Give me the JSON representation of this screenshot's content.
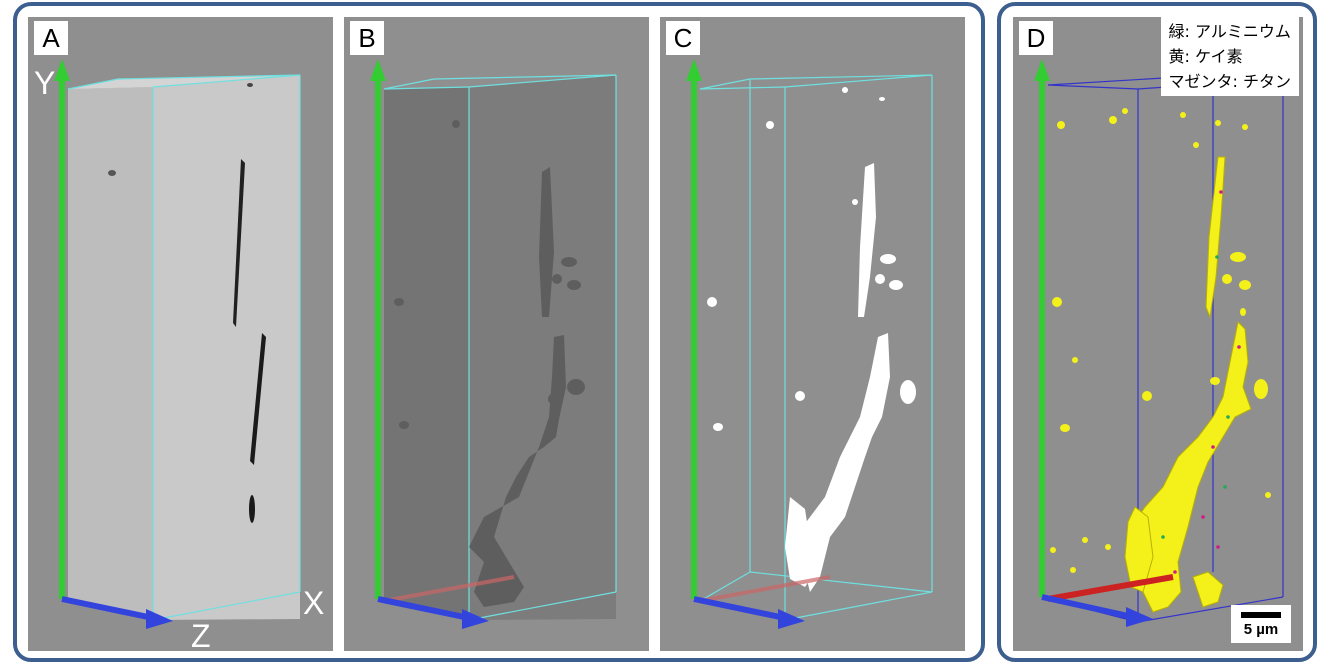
{
  "panels": [
    {
      "label": "A"
    },
    {
      "label": "B"
    },
    {
      "label": "C"
    },
    {
      "label": "D"
    }
  ],
  "axes": {
    "y": "Y",
    "x": "X",
    "z": "Z"
  },
  "legend": {
    "line1": "緑: アルミニウム",
    "line2": "黄: ケイ素",
    "line3": "マゼンタ: チタン"
  },
  "scale_bar": {
    "label": "5 µm"
  },
  "colors": {
    "frame": "#3c5f8f",
    "panel_background": "#8f8f8f",
    "y_axis": "#33cc33",
    "z_axis": "#3344dd",
    "x_axis": "#cc2222",
    "box_edges_abc": "#6fe0e0",
    "box_edges_d": "#3333cc",
    "silicon": "#f4f01a",
    "titanium": "#d11a8a"
  }
}
